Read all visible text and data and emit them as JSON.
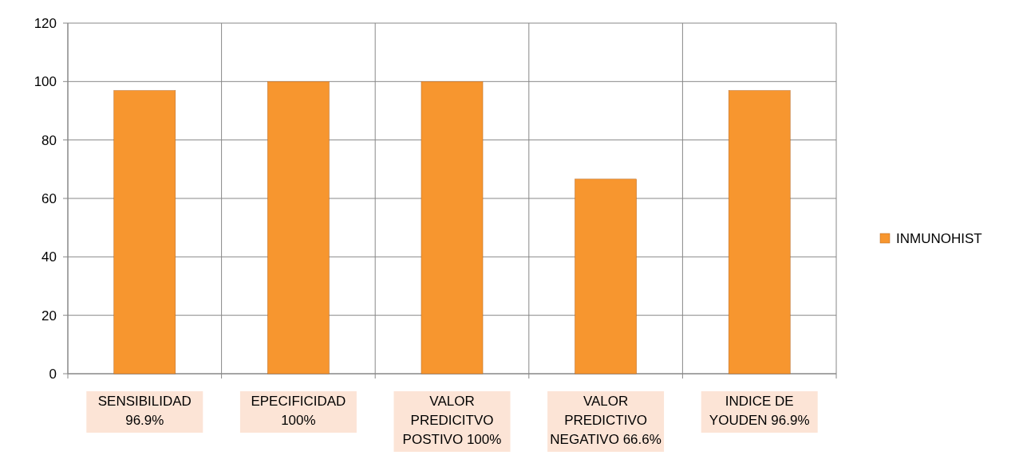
{
  "chart_data": {
    "type": "bar",
    "categories": [
      "SENSIBILIDAD\n96.9%",
      "EPECIFICIDAD\n100%",
      "VALOR\nPREDICITVO\nPOSTIVO 100%",
      "VALOR\nPREDICTIVO\nNEGATIVO 66.6%",
      "INDICE DE\nYOUDEN 96.9%"
    ],
    "series": [
      {
        "name": "INMUNOHIST",
        "color": "#f7962f",
        "values": [
          96.9,
          100,
          100,
          66.6,
          96.9
        ]
      }
    ],
    "ylim": [
      0,
      120
    ],
    "yticks": [
      0,
      20,
      40,
      60,
      80,
      100,
      120
    ],
    "grid": true,
    "legend": "right"
  }
}
